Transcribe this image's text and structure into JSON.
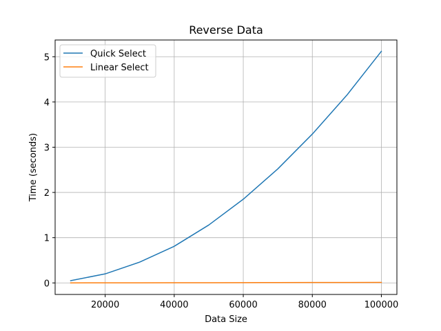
{
  "chart_data": {
    "type": "line",
    "title": "Reverse Data",
    "xlabel": "Data Size",
    "ylabel": "Time (seconds)",
    "x": [
      10000,
      20000,
      30000,
      40000,
      50000,
      60000,
      70000,
      80000,
      90000,
      100000
    ],
    "series": [
      {
        "name": "Quick Select",
        "color": "#1f77b4",
        "values": [
          0.05,
          0.2,
          0.46,
          0.81,
          1.28,
          1.85,
          2.52,
          3.29,
          4.15,
          5.12
        ]
      },
      {
        "name": "Linear Select",
        "color": "#ff7f0e",
        "values": [
          0.001,
          0.002,
          0.003,
          0.004,
          0.005,
          0.006,
          0.008,
          0.009,
          0.01,
          0.012
        ]
      }
    ],
    "xlim": [
      5500,
      104500
    ],
    "ylim": [
      -0.255,
      5.37
    ],
    "xticks": [
      20000,
      40000,
      60000,
      80000,
      100000
    ],
    "xtick_labels": [
      "20000",
      "40000",
      "60000",
      "80000",
      "100000"
    ],
    "yticks": [
      0,
      1,
      2,
      3,
      4,
      5
    ],
    "ytick_labels": [
      "0",
      "1",
      "2",
      "3",
      "4",
      "5"
    ],
    "grid": true,
    "legend_position": "top-left"
  }
}
